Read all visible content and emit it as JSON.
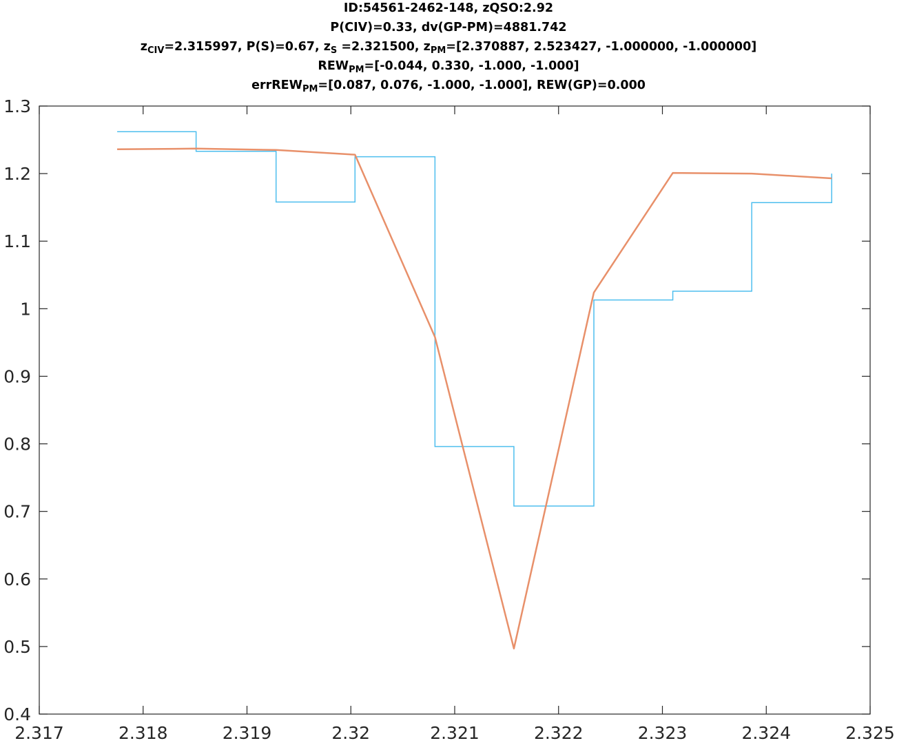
{
  "title": {
    "line1": "ID:54561-2462-148, zQSO:2.92",
    "line2": "P(CIV)=0.33, dv(GP-PM)=4881.742",
    "line3": {
      "z1": "z",
      "z1_sub": "CIV",
      "after_z1": "=2.315997, P(S)=0.67, ",
      "z2": "z",
      "z2_sub": "S",
      "after_z2": " =2.321500, ",
      "z3": "z",
      "z3_sub": "PM",
      "after_z3": "=[2.370887, 2.523427, -1.000000, -1.000000]"
    },
    "line4": {
      "pre": "REW",
      "sub": "PM",
      "post": "=[-0.044, 0.330, -1.000, -1.000]"
    },
    "line5": {
      "pre": "errREW",
      "sub": "PM",
      "post": "=[0.087, 0.076, -1.000, -1.000], REW(GP)=0.000"
    }
  },
  "chart_data": {
    "type": "line",
    "xlim": [
      2.317,
      2.325
    ],
    "ylim": [
      0.4,
      1.3
    ],
    "x_ticks": [
      "2.317",
      "2.318",
      "2.319",
      "2.32",
      "2.321",
      "2.322",
      "2.323",
      "2.324",
      "2.325"
    ],
    "y_ticks": [
      "0.4",
      "0.5",
      "0.6",
      "0.7",
      "0.8",
      "0.9",
      "1",
      "1.1",
      "1.2",
      "1.3"
    ],
    "grid": false,
    "series": [
      {
        "style": "stairs",
        "color": "#4DBEEE",
        "x": [
          2.31775,
          2.31851,
          2.31928,
          2.32004,
          2.32081,
          2.32157,
          2.32234,
          2.3231,
          2.32386,
          2.32463
        ],
        "values": [
          1.262,
          1.233,
          1.158,
          1.225,
          0.796,
          0.708,
          1.013,
          1.026,
          1.157,
          1.2
        ]
      },
      {
        "style": "line",
        "color": "#E8906A",
        "x": [
          2.31775,
          2.31851,
          2.31928,
          2.32004,
          2.32081,
          2.32157,
          2.32234,
          2.3231,
          2.32386,
          2.32463
        ],
        "values": [
          1.236,
          1.237,
          1.235,
          1.228,
          0.958,
          0.497,
          1.024,
          1.201,
          1.2,
          1.193
        ]
      }
    ]
  }
}
